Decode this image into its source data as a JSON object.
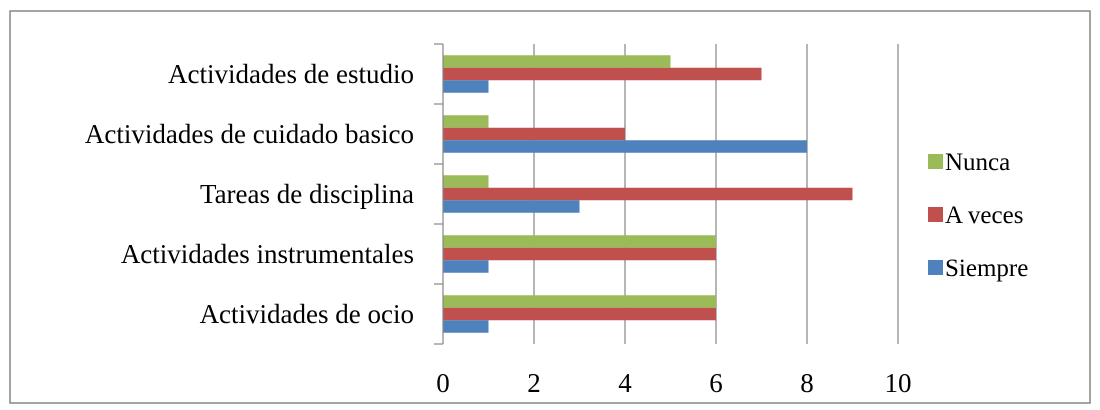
{
  "chart_data": {
    "type": "bar",
    "orientation": "horizontal",
    "categories": [
      "Actividades de estudio",
      "Actividades de cuidado basico",
      "Tareas de disciplina",
      "Actividades instrumentales",
      "Actividades de ocio"
    ],
    "series": [
      {
        "name": "Nunca",
        "color": "#9BBB59",
        "values": [
          5,
          1,
          1,
          6,
          6
        ]
      },
      {
        "name": "A veces",
        "color": "#C0504D",
        "values": [
          7,
          4,
          9,
          6,
          6
        ]
      },
      {
        "name": "Siempre",
        "color": "#4F81BD",
        "values": [
          1,
          8,
          3,
          1,
          1
        ]
      }
    ],
    "xlim": [
      0,
      10
    ],
    "xticks": [
      "0",
      "2",
      "4",
      "6",
      "8",
      "10"
    ],
    "grid": "vertical",
    "legend": "right",
    "title": "",
    "xlabel": "",
    "ylabel": ""
  }
}
